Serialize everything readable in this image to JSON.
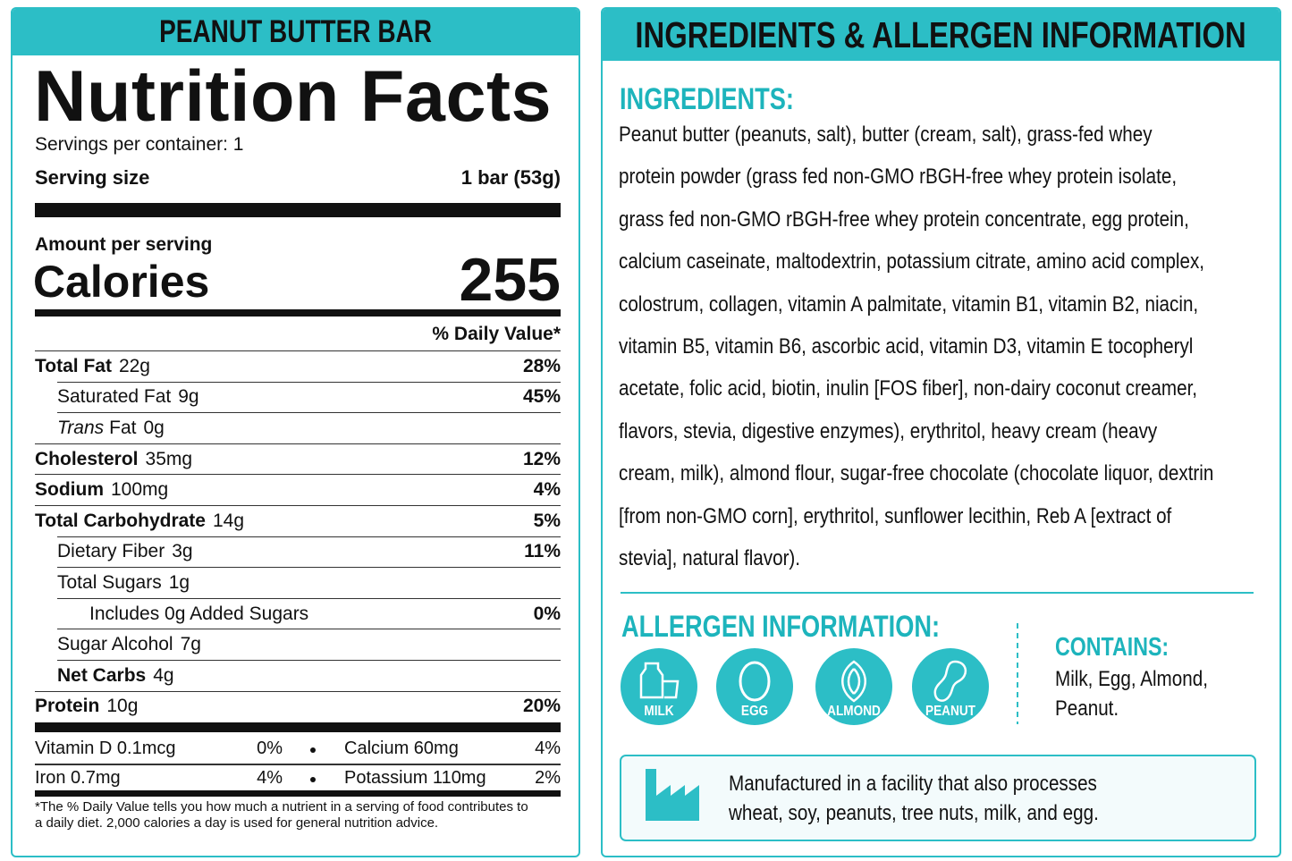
{
  "nutrition": {
    "header": "PEANUT BUTTER BAR",
    "title": "Nutrition Facts",
    "servings": "Servings per container: 1",
    "serving_size_label": "Serving size",
    "serving_size": "1 bar (53g)",
    "amount_label": "Amount per serving",
    "calories_label": "Calories",
    "calories": 255,
    "dv_header": "% Daily Value*",
    "rows": [
      {
        "name": "Total Fat",
        "amount": "22g",
        "dv": "28%"
      },
      {
        "name": "Saturated Fat",
        "amount": "9g",
        "dv": "45%"
      },
      {
        "prefix": "Trans",
        "name": "Fat",
        "amount": "0g"
      },
      {
        "name": "Cholesterol",
        "amount": "35mg",
        "dv": "12%"
      },
      {
        "name": "Sodium",
        "amount": "100mg",
        "dv": "4%"
      },
      {
        "name": "Total Carbohydrate",
        "amount": "14g",
        "dv": "5%"
      },
      {
        "name": "Dietary Fiber",
        "amount": "3g",
        "dv": "11%"
      },
      {
        "name": "Total Sugars",
        "amount": "1g"
      },
      {
        "name": "Includes 0g Added Sugars",
        "dv": "0%"
      },
      {
        "name": "Sugar Alcohol",
        "amount": "7g"
      },
      {
        "name": "Net Carbs",
        "amount": "4g"
      },
      {
        "name": "Protein",
        "amount": "10g",
        "dv": "20%"
      }
    ],
    "micros": [
      [
        {
          "name": "Vitamin D 0.1mcg",
          "dv": "0%"
        },
        {
          "name": "Calcium 60mg",
          "dv": "4%"
        }
      ],
      [
        {
          "name": "Iron 0.7mg",
          "dv": "4%"
        },
        {
          "name": "Potassium 110mg",
          "dv": "2%"
        }
      ]
    ],
    "footnote": "*The % Daily Value tells you how much a nutrient in a serving of food contributes to a daily diet. 2,000 calories a day is used for general nutrition advice."
  },
  "info": {
    "header": "INGREDIENTS & ALLERGEN INFORMATION",
    "ingredients_title": "INGREDIENTS:",
    "ingredients_lines": [
      "Peanut butter (peanuts, salt), butter (cream, salt), grass-fed whey",
      "protein powder (grass fed non-GMO rBGH-free whey protein isolate,",
      "grass fed non-GMO rBGH-free whey protein concentrate, egg protein,",
      "calcium caseinate, maltodextrin, potassium citrate, amino acid complex,",
      "colostrum, collagen, vitamin A palmitate, vitamin B1, vitamin B2, niacin,",
      "vitamin B5, vitamin B6, ascorbic acid, vitamin D3, vitamin E tocopheryl",
      "acetate, folic acid, biotin, inulin [FOS fiber], non-dairy coconut creamer,",
      "flavors, stevia, digestive enzymes), erythritol, heavy cream (heavy",
      "cream, milk), almond flour, sugar-free chocolate (chocolate liquor, dextrin",
      "[from non-GMO corn], erythritol, sunflower lecithin, Reb A [extract of",
      "stevia], natural flavor)."
    ],
    "allergen_title": "ALLERGEN INFORMATION:",
    "allergens": [
      "MILK",
      "EGG",
      "ALMOND",
      "PEANUT"
    ],
    "contains_title": "CONTAINS:",
    "contains_lines": [
      "Milk, Egg, Almond,",
      "Peanut."
    ],
    "facility_lines": [
      "Manufactured in a facility that also processes",
      "wheat, soy, peanuts, tree nuts, milk, and egg."
    ]
  }
}
